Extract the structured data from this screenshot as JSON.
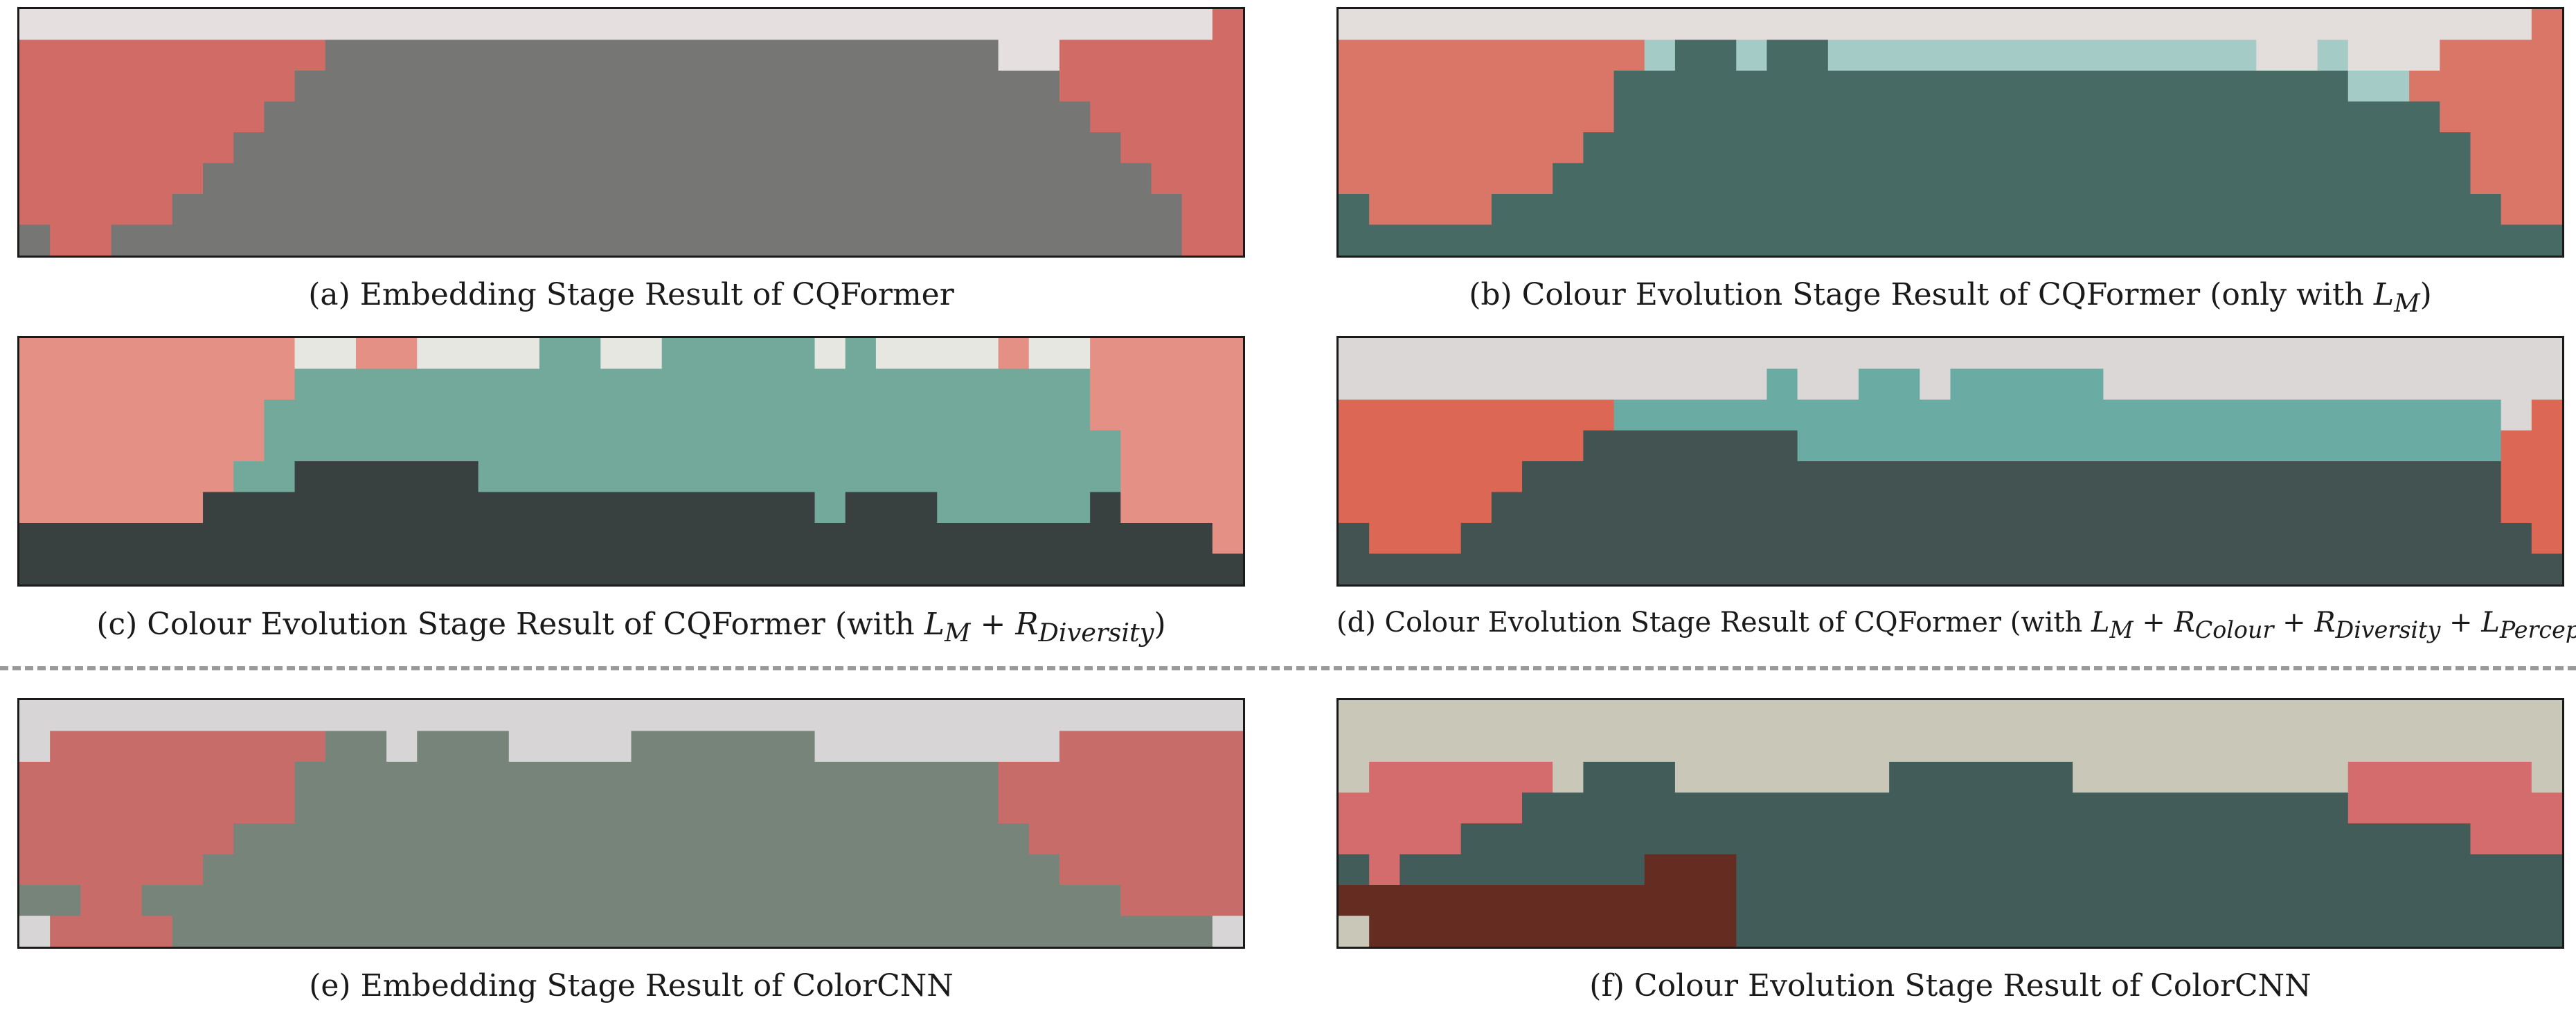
{
  "figure": {
    "panels": [
      {
        "id": "a",
        "caption": {
          "text": "(a) Embedding Stage Result of CQFormer"
        },
        "cols": 40,
        "rows": 8,
        "palette": {
          "L": "#e6dfe0",
          "R": "#d06b66",
          "G": "#767775"
        },
        "grid": [
          "LLLLLLLLLLLLLLLLLLLLLLLLLLLLLLLLLLLLLLLR",
          "RRRRRRRRRRGGGGGGGGGGGGGGGGGGGGGGLLRRRRRR",
          "RRRRRRRRRGGGGGGGGGGGGGGGGGGGGGGGGGRRRRRR",
          "RRRRRRRRGGGGGGGGGGGGGGGGGGGGGGGGGGGRRRRR",
          "RRRRRRRGGGGGGGGGGGGGGGGGGGGGGGGGGGGGRRRR",
          "RRRRRRGGGGGGGGGGGGGGGGGGGGGGGGGGGGGGGRRR",
          "RRRRRGGGGGGGGGGGGGGGGGGGGGGGGGGGGGGGGGRR",
          "GRRGGGGGGGGGGGGGGGGGGGGGGGGGGGGGGGGGGGRR"
        ]
      },
      {
        "id": "b",
        "caption": {
          "prefix": "(b) Colour Evolution Stage Result of CQFormer (only with ",
          "main": "L",
          "sub": "M",
          "suffix": ")"
        },
        "cols": 40,
        "rows": 8,
        "palette": {
          "L": "#e3dddc",
          "R": "#da7667",
          "T": "#a5cbc6",
          "D": "#476a64"
        },
        "grid": [
          "LLLLLLLLLLLLLLLLLLLLLLLLLLLLLLLLLLLLLLLR",
          "RRRRRRRRRRTDDTDDTTTTTTTTTTTTTTLLTLLLRRRR",
          "RRRRRRRRRDDDDDDDDDDDDDDDDDDDDDDDDTTRRRRR",
          "RRRRRRRRRDDDDDDDDDDDDDDDDDDDDDDDDDDDRRRR",
          "RRRRRRRRDDDDDDDDDDDDDDDDDDDDDDDDDDDDDRRR",
          "RRRRRRRDDDDDDDDDDDDDDDDDDDDDDDDDDDDDDRRR",
          "DRRRRDDDDDDDDDDDDDDDDDDDDDDDDDDDDDDDDDRR",
          "DDDDDDDDDDDDDDDDDDDDDDDDDDDDDDDDDDDDDDDD"
        ]
      },
      {
        "id": "c",
        "caption": {
          "prefix": "(c) Colour Evolution Stage Result of CQFormer (with ",
          "main": "L",
          "sub": "M",
          "mid": " + ",
          "main2": "R",
          "sub2": "Diversity",
          "suffix": ")"
        },
        "cols": 40,
        "rows": 8,
        "palette": {
          "P": "#e49085",
          "W": "#e7e7e2",
          "T": "#73a99b",
          "K": "#394140"
        },
        "grid": [
          "PPPPPPPPPWWPPWWWWTTWWTTTTTWTWWWWPWWPPPPP",
          "PPPPPPPPPTTTTTTTTTTTTTTTTTTTTTTTTTTPPPPP",
          "PPPPPPPPTTTTTTTTTTTTTTTTTTTTTTTTTTTPPPPP",
          "PPPPPPPPTTTTTTTTTTTTTTTTTTTTTTTTTTTTPPPP",
          "PPPPPPPTTKKKKKKTTTTTTTTTTTTTTTTTTTTTPPPP",
          "PPPPPPKKKKKKKKKKKKKKKKKKKKTKKKTTTTTKPPPP",
          "KKKKKKKKKKKKKKKKKKKKKKKKKKKKKKKKKKKKKKKP",
          "KKKKKKKKKKKKKKKKKKKKKKKKKKKKKKKKKKKKKKKK"
        ]
      },
      {
        "id": "d",
        "caption": {
          "prefix": "(d) Colour Evolution Stage Result of CQFormer (with ",
          "main": "L",
          "sub": "M",
          "mid": " + ",
          "main2": "R",
          "sub2": "Colour",
          "mid2": " + ",
          "main3": "R",
          "sub3": "Diversity",
          "mid3": " + ",
          "main4": "L",
          "sub4": "Perceptual",
          "suffix": ")"
        },
        "cols": 40,
        "rows": 8,
        "palette": {
          "L": "#dad7d6",
          "O": "#db6754",
          "T": "#6aaba4",
          "K": "#435351"
        },
        "grid": [
          "LLLLLLLLLLLLLLLLLLLLLLLLLLLLLLLLLLLLLLLL",
          "LLLLLLLLLLLLLLTLLTTLTTTTTLLLLLLLLLLLLLLL",
          "OOOOOOOOOTTTTTTTTTTTTTTTTTTTTTTTTTTTTTLO",
          "OOOOOOOOKKKKKKKTTTTTTTTTTTTTTTTTTTTTTTOO",
          "OOOOOOKKKKKKKKKKKKKKKKKKKKKKKKKKKKKKKKOO",
          "OOOOOKKKKKKKKKKKKKKKKKKKKKKKKKKKKKKKKKOO",
          "KOOOKKKKKKKKKKKKKKKKKKKKKKKKKKKKKKKKKKKO",
          "KKKKKKKKKKKKKKKKKKKKKKKKKKKKKKKKKKKKKKKK"
        ]
      },
      {
        "id": "e",
        "caption": {
          "text": "(e) Embedding Stage Result of ColorCNN"
        },
        "cols": 40,
        "rows": 8,
        "palette": {
          "L": "#d7d5d5",
          "R": "#c86c6a",
          "G": "#77847a"
        },
        "grid": [
          "LLLLLLLLLLLLLLLLLLLLLLLLLLLLLLLLLLLLLLLL",
          "LRRRRRRRRRGGLGGGLLLLGGGGGGLLLLLLLLRRRRRR",
          "RRRRRRRRRGGGGGGGGGGGGGGGGGGGGGGGRRRRRRRR",
          "RRRRRRRRRGGGGGGGGGGGGGGGGGGGGGGGRRRRRRRR",
          "RRRRRRRGGGGGGGGGGGGGGGGGGGGGGGGGGRRRRRRR",
          "RRRRRRGGGGGGGGGGGGGGGGGGGGGGGGGGGGRRRRRR",
          "GGRRGGGGGGGGGGGGGGGGGGGGGGGGGGGGGGGGRRRR",
          "LRRRRGGGGGGGGGGGGGGGGGGGGGGGGGGGGGGGGGGL"
        ]
      },
      {
        "id": "f",
        "caption": {
          "text": "(f) Colour Evolution Stage Result of ColorCNN"
        },
        "cols": 40,
        "rows": 8,
        "palette": {
          "B": "#c9c7b7",
          "R": "#d46c6d",
          "D": "#415c59",
          "N": "#652d21"
        },
        "grid": [
          "BBBBBBBBBBBBBBBBBBBBBBBBBBBBBBBBBBBBBBBB",
          "BBBBBBBBBBBBBBBBBBBBBBBBBBBBBBBBBBBBBBBB",
          "BRRRRRRBDDDBBBBBBBDDDDDDBBBBBBBBBRRRRRRB",
          "RRRRRRDDDDDDDDDDDDDDDDDDDDDDDDDDDRRRRRRR",
          "RRRRDDDDDDDDDDDDDDDDDDDDDDDDDDDDDDDDDRRR",
          "DRDDDDDDDDNNNDDDDDDDDDDDDDDDDDDDDDDDDDDD",
          "NNNNNNNNNNNNNDDDDDDDDDDDDDDDDDDDDDDDDDDD",
          "BNNNNNNNNNNNNDDDDDDDDDDDDDDDDDDDDDDDDDDD"
        ]
      }
    ]
  }
}
